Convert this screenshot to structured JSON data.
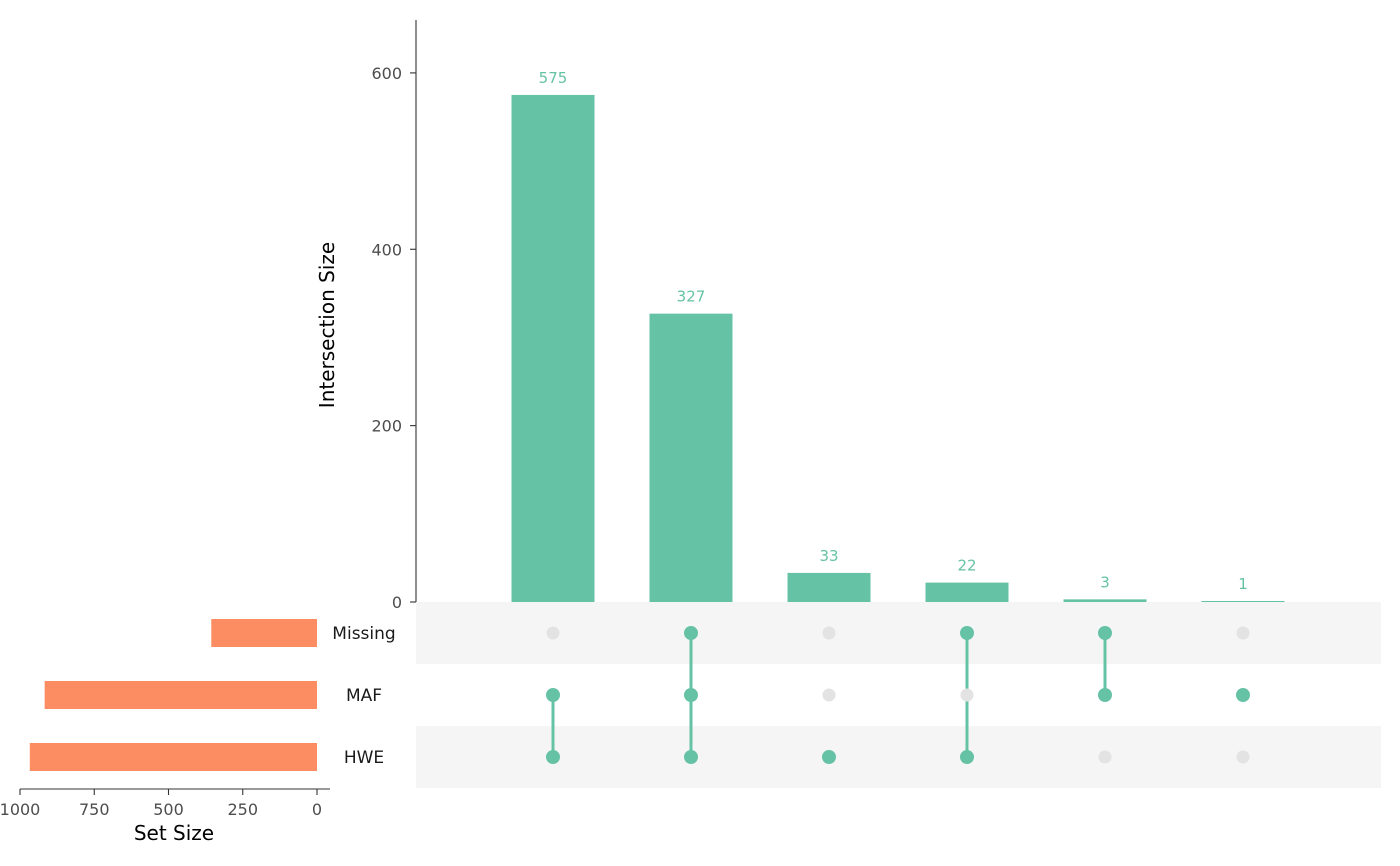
{
  "chart_data": {
    "type": "bar",
    "subtype": "upset",
    "sets": [
      "Missing",
      "MAF",
      "HWE"
    ],
    "set_sizes": [
      {
        "name": "Missing",
        "value": 356
      },
      {
        "name": "MAF",
        "value": 917
      },
      {
        "name": "HWE",
        "value": 967
      }
    ],
    "intersections": [
      {
        "sets": [
          "MAF",
          "HWE"
        ],
        "value": 575,
        "label": "575"
      },
      {
        "sets": [
          "Missing",
          "MAF",
          "HWE"
        ],
        "value": 327,
        "label": "327"
      },
      {
        "sets": [
          "HWE"
        ],
        "value": 33,
        "label": "33"
      },
      {
        "sets": [
          "Missing",
          "HWE"
        ],
        "value": 22,
        "label": "22"
      },
      {
        "sets": [
          "Missing",
          "MAF"
        ],
        "value": 3,
        "label": "3"
      },
      {
        "sets": [
          "MAF"
        ],
        "value": 1,
        "label": "1"
      }
    ],
    "intersection_axis": {
      "label": "Intersection Size",
      "ylim": [
        0,
        660
      ],
      "ticks": [
        0,
        200,
        400,
        600
      ],
      "tick_labels": [
        "0",
        "200",
        "400",
        "600"
      ]
    },
    "set_size_axis": {
      "label": "Set Size",
      "xlim_reversed": [
        0,
        1000
      ],
      "ticks": [
        1000,
        750,
        500,
        250,
        0
      ],
      "tick_labels": [
        "1000",
        "750",
        "500",
        "250",
        "0"
      ]
    },
    "colors": {
      "intersection_bars": "#66c2a5",
      "set_bars": "#fc8d62",
      "inactive_dot": "#e3e3e3",
      "stripe": "#f5f5f5"
    }
  }
}
